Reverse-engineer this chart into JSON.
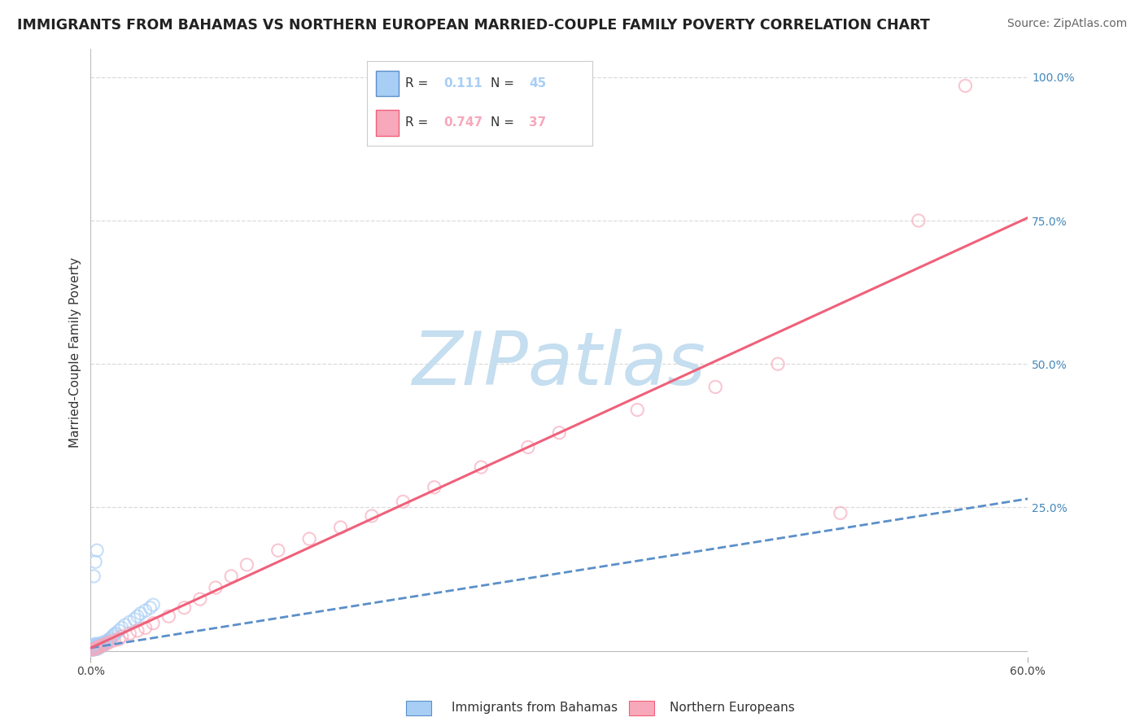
{
  "title": "IMMIGRANTS FROM BAHAMAS VS NORTHERN EUROPEAN MARRIED-COUPLE FAMILY POVERTY CORRELATION CHART",
  "source": "Source: ZipAtlas.com",
  "ylabel_label": "Married-Couple Family Poverty",
  "xlim": [
    0.0,
    0.6
  ],
  "ylim": [
    -0.01,
    1.05
  ],
  "ytick_values": [
    0.25,
    0.5,
    0.75,
    1.0
  ],
  "watermark": "ZIPatlas",
  "legend_entries": [
    {
      "label": "Immigrants from Bahamas",
      "color": "#a8cef5",
      "line_color": "#5b8fc9",
      "R": "0.111",
      "N": "45"
    },
    {
      "label": "Northern Europeans",
      "color": "#f7a8bb",
      "line_color": "#f0607a",
      "R": "0.747",
      "N": "37"
    }
  ],
  "bahamas_scatter_x": [
    0.001,
    0.001,
    0.001,
    0.001,
    0.002,
    0.002,
    0.002,
    0.002,
    0.003,
    0.003,
    0.003,
    0.003,
    0.004,
    0.004,
    0.004,
    0.005,
    0.005,
    0.005,
    0.006,
    0.006,
    0.007,
    0.007,
    0.008,
    0.008,
    0.009,
    0.01,
    0.011,
    0.012,
    0.013,
    0.014,
    0.015,
    0.016,
    0.018,
    0.02,
    0.022,
    0.025,
    0.028,
    0.03,
    0.032,
    0.035,
    0.038,
    0.04,
    0.002,
    0.003,
    0.004
  ],
  "bahamas_scatter_y": [
    0.002,
    0.003,
    0.005,
    0.007,
    0.002,
    0.004,
    0.006,
    0.01,
    0.003,
    0.005,
    0.008,
    0.012,
    0.003,
    0.006,
    0.01,
    0.005,
    0.008,
    0.012,
    0.006,
    0.01,
    0.008,
    0.012,
    0.01,
    0.015,
    0.012,
    0.015,
    0.018,
    0.02,
    0.022,
    0.025,
    0.028,
    0.03,
    0.035,
    0.04,
    0.045,
    0.05,
    0.055,
    0.06,
    0.065,
    0.07,
    0.075,
    0.08,
    0.13,
    0.155,
    0.175
  ],
  "northern_scatter_x": [
    0.001,
    0.002,
    0.003,
    0.004,
    0.005,
    0.006,
    0.008,
    0.01,
    0.012,
    0.015,
    0.018,
    0.02,
    0.025,
    0.03,
    0.035,
    0.04,
    0.05,
    0.06,
    0.07,
    0.08,
    0.09,
    0.1,
    0.12,
    0.14,
    0.16,
    0.18,
    0.2,
    0.22,
    0.25,
    0.28,
    0.3,
    0.35,
    0.4,
    0.44,
    0.48,
    0.53,
    0.56
  ],
  "northern_scatter_y": [
    0.002,
    0.003,
    0.004,
    0.005,
    0.006,
    0.008,
    0.01,
    0.012,
    0.015,
    0.018,
    0.02,
    0.025,
    0.03,
    0.035,
    0.04,
    0.048,
    0.06,
    0.075,
    0.09,
    0.11,
    0.13,
    0.15,
    0.175,
    0.195,
    0.215,
    0.235,
    0.26,
    0.285,
    0.32,
    0.355,
    0.38,
    0.42,
    0.46,
    0.5,
    0.24,
    0.75,
    0.985
  ],
  "bahamas_line_x": [
    0.0,
    0.6
  ],
  "bahamas_line_y": [
    0.005,
    0.265
  ],
  "northern_line_x": [
    0.0,
    0.6
  ],
  "northern_line_y": [
    0.005,
    0.755
  ],
  "background_color": "#ffffff",
  "grid_color": "#d8d8d8",
  "scatter_alpha": 0.65,
  "scatter_size": 120,
  "watermark_color": "#c5def0",
  "watermark_fontsize": 65,
  "title_fontsize": 12.5,
  "source_fontsize": 10,
  "axis_label_fontsize": 11,
  "ytick_color": "#4488bb",
  "xtick_color": "#444444"
}
